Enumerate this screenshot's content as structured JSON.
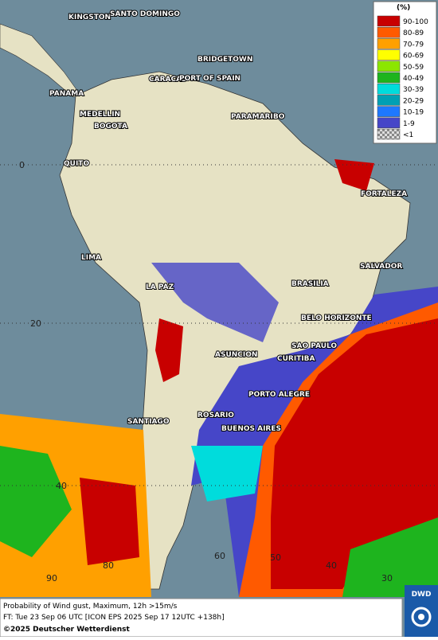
{
  "map": {
    "cities": [
      "KINGSTON",
      "SANTO DOMINGO",
      "BRIDGETOWN",
      "CARACAS",
      "PORT OF SPAIN",
      "PANAMA",
      "MEDELLIN",
      "BOGOTA",
      "PARAMARIBO",
      "QUITO",
      "FORTALEZA",
      "LIMA",
      "SALVADOR",
      "LA PAZ",
      "BRASILIA",
      "BELO HORIZONTE",
      "SAO PAULO",
      "ASUNCION",
      "CURITIBA",
      "PORTO ALEGRE",
      "ROSARIO",
      "SANTIAGO",
      "BUENOS AIRES"
    ],
    "grid_labels": [
      "0",
      "20",
      "40",
      "90",
      "80",
      "60",
      "50",
      "40",
      "30"
    ]
  },
  "legend": {
    "unit": "(%)",
    "entries": [
      {
        "label": "90-100",
        "color": "#c80000"
      },
      {
        "label": "80-89",
        "color": "#ff5a00"
      },
      {
        "label": "70-79",
        "color": "#ffa000"
      },
      {
        "label": "60-69",
        "color": "#ffff00"
      },
      {
        "label": "50-59",
        "color": "#8ce600"
      },
      {
        "label": "40-49",
        "color": "#1eb41e"
      },
      {
        "label": "30-39",
        "color": "#00dcdc"
      },
      {
        "label": "20-29",
        "color": "#00a0b4"
      },
      {
        "label": "10-19",
        "color": "#1e78ff"
      },
      {
        "label": "1-9",
        "color": "#4646c8"
      },
      {
        "label": "<1",
        "color": "#b0b0b0"
      }
    ]
  },
  "footer": {
    "line1": "Probability of Wind gust, Maximum, 12h >15m/s",
    "line2": "FT: Tue 23 Sep 06 UTC [ICON EPS 2025 Sep 17 12UTC +138h]",
    "copyright": "©2025 Deutscher Wetterdienst",
    "logo": "DWD"
  }
}
